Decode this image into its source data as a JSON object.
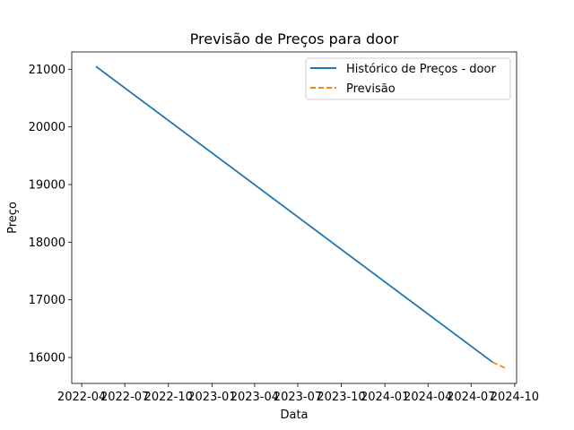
{
  "chart_data": {
    "type": "line",
    "title": "Previsão de Preços para door",
    "xlabel": "Data",
    "ylabel": "Preço",
    "x_ticks": [
      "2022-04",
      "2022-07",
      "2022-10",
      "2023-01",
      "2023-04",
      "2023-07",
      "2023-10",
      "2024-01",
      "2024-04",
      "2024-07",
      "2024-10"
    ],
    "y_ticks": [
      16000,
      17000,
      18000,
      19000,
      20000,
      21000
    ],
    "xlim": [
      "2022-03-11",
      "2024-10-05"
    ],
    "ylim": [
      15550,
      21300
    ],
    "grid": false,
    "legend_position": "top-right",
    "series": [
      {
        "name": "Histórico de Preços - door",
        "color": "#1f77b4",
        "style": "solid",
        "x": [
          "2022-05-01",
          "2024-08-15"
        ],
        "y": [
          21050,
          15920
        ]
      },
      {
        "name": "Previsão",
        "color": "#ff7f0e",
        "style": "dashed",
        "x": [
          "2024-08-15",
          "2024-09-15"
        ],
        "y": [
          15920,
          15800
        ]
      }
    ]
  }
}
